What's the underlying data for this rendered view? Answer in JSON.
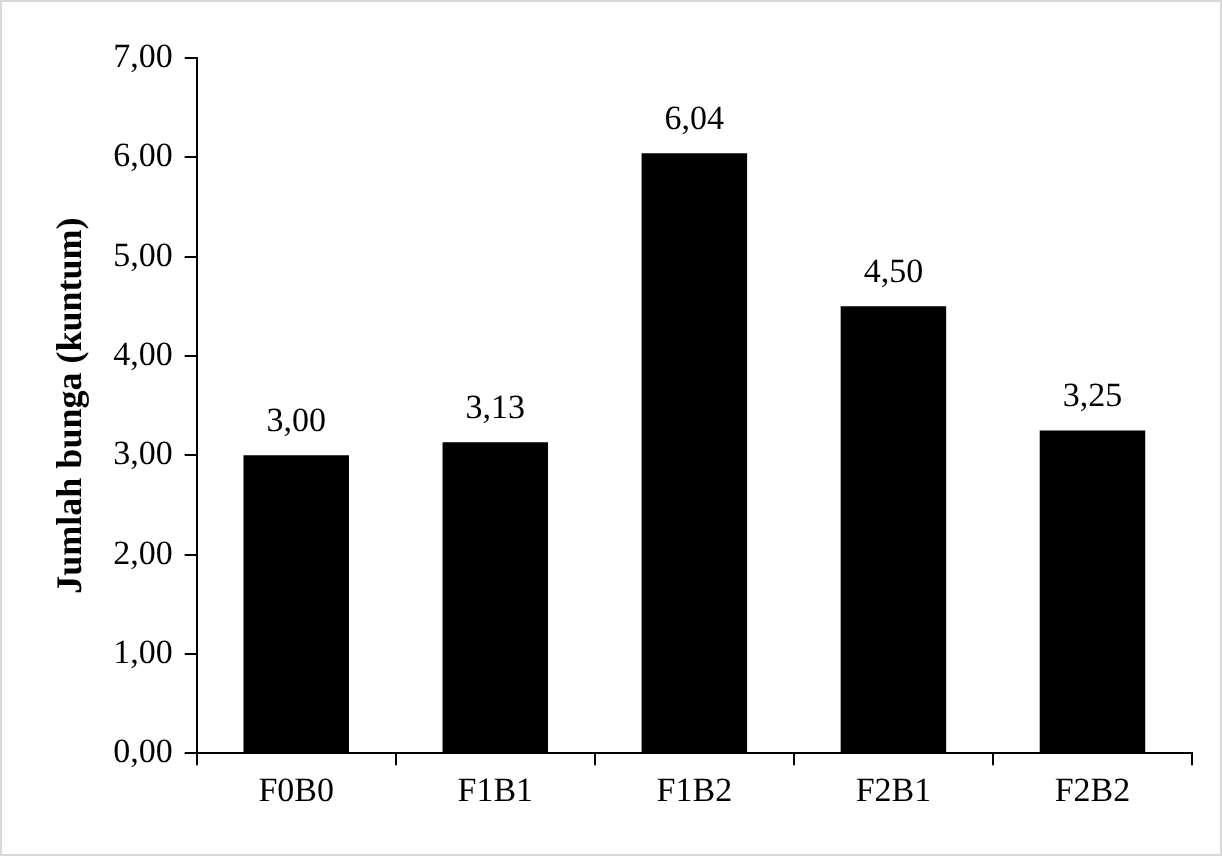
{
  "chart_data": {
    "type": "bar",
    "ylabel": "Jumlah bunga (kuntum)",
    "categories": [
      "F0B0",
      "F1B1",
      "F1B2",
      "F2B1",
      "F2B2"
    ],
    "values": [
      3.0,
      3.13,
      6.04,
      4.5,
      3.25
    ],
    "value_labels": [
      "3,00",
      "3,13",
      "6,04",
      "4,50",
      "3,25"
    ],
    "color": "#000000",
    "ylim": [
      0,
      7
    ],
    "yticks": [
      {
        "value": 0,
        "label": "0,00"
      },
      {
        "value": 1,
        "label": "1,00"
      },
      {
        "value": 2,
        "label": "2,00"
      },
      {
        "value": 3,
        "label": "3,00"
      },
      {
        "value": 4,
        "label": "4,00"
      },
      {
        "value": 5,
        "label": "5,00"
      },
      {
        "value": 6,
        "label": "6,00"
      },
      {
        "value": 7,
        "label": "7,00"
      }
    ],
    "grid": false,
    "legend": false
  }
}
